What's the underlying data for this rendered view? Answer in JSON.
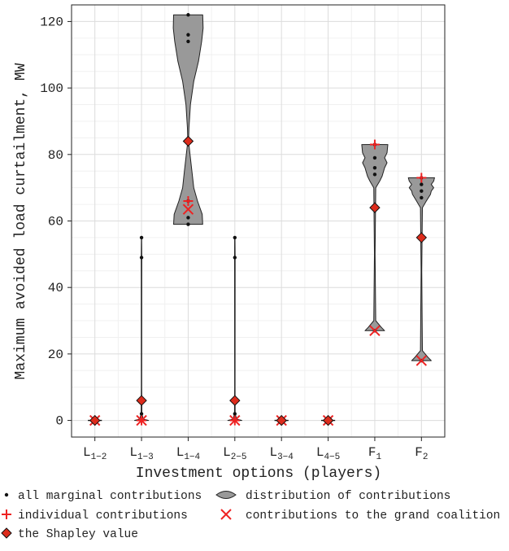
{
  "chart_data": {
    "type": "violin",
    "xlabel": "Investment options (players)",
    "ylabel": "Maximum avoided load curtailment, MW",
    "ylim": [
      -5,
      125
    ],
    "yticks": [
      0,
      20,
      40,
      60,
      80,
      100,
      120
    ],
    "grid": true,
    "categories": [
      {
        "base": "L",
        "sub": "1−2"
      },
      {
        "base": "L",
        "sub": "1−3"
      },
      {
        "base": "L",
        "sub": "1−4"
      },
      {
        "base": "L",
        "sub": "2−5"
      },
      {
        "base": "L",
        "sub": "3−4"
      },
      {
        "base": "L",
        "sub": "4−5"
      },
      {
        "base": "F",
        "sub": "1"
      },
      {
        "base": "F",
        "sub": "2"
      }
    ],
    "series": [
      {
        "name": "all marginal contributions",
        "values": [
          [
            0
          ],
          [
            0,
            2,
            49,
            55
          ],
          [
            59,
            61,
            66,
            114,
            116,
            122
          ],
          [
            0,
            2,
            49,
            55
          ],
          [
            0
          ],
          [
            0
          ],
          [
            27,
            74,
            76,
            79,
            83
          ],
          [
            18,
            67,
            69,
            71,
            73
          ]
        ]
      },
      {
        "name": "distribution of contributions",
        "violins": [
          {
            "min": 0,
            "max": 0,
            "width": 0.3,
            "profile": [
              [
                0,
                1
              ]
            ]
          },
          {
            "min": 0,
            "max": 55,
            "width": 0.3,
            "profile": [
              [
                0,
                1
              ],
              [
                0.4,
                0.25
              ],
              [
                2,
                0.05
              ],
              [
                10,
                0.03
              ],
              [
                49,
                0.04
              ],
              [
                55,
                0.02
              ]
            ]
          },
          {
            "min": 59,
            "max": 122,
            "width": 0.8,
            "profile": [
              [
                59,
                0.78
              ],
              [
                62,
                0.75
              ],
              [
                66,
                0.5
              ],
              [
                70,
                0.3
              ],
              [
                75,
                0.2
              ],
              [
                80,
                0.1
              ],
              [
                84,
                0.02
              ],
              [
                88,
                0.04
              ],
              [
                95,
                0.12
              ],
              [
                102,
                0.3
              ],
              [
                108,
                0.55
              ],
              [
                114,
                0.72
              ],
              [
                118,
                0.8
              ],
              [
                122,
                0.78
              ]
            ]
          },
          {
            "min": 0,
            "max": 55,
            "width": 0.3,
            "profile": [
              [
                0,
                1
              ],
              [
                0.4,
                0.25
              ],
              [
                2,
                0.05
              ],
              [
                10,
                0.03
              ],
              [
                49,
                0.04
              ],
              [
                55,
                0.02
              ]
            ]
          },
          {
            "min": 0,
            "max": 0,
            "width": 0.3,
            "profile": [
              [
                0,
                1
              ]
            ]
          },
          {
            "min": 0,
            "max": 0,
            "width": 0.3,
            "profile": [
              [
                0,
                1
              ]
            ]
          },
          {
            "min": 27,
            "max": 83,
            "width": 0.7,
            "profile": [
              [
                27,
                0.6
              ],
              [
                28,
                0.4
              ],
              [
                30,
                0.06
              ],
              [
                50,
                0.02
              ],
              [
                70,
                0.06
              ],
              [
                72,
                0.3
              ],
              [
                73.5,
                0.45
              ],
              [
                76,
                0.6
              ],
              [
                77.5,
                0.75
              ],
              [
                79,
                0.6
              ],
              [
                80.5,
                0.75
              ],
              [
                83,
                0.8
              ]
            ]
          },
          {
            "min": 18,
            "max": 73,
            "width": 0.7,
            "profile": [
              [
                18,
                0.6
              ],
              [
                19,
                0.4
              ],
              [
                21,
                0.06
              ],
              [
                45,
                0.02
              ],
              [
                64,
                0.06
              ],
              [
                66,
                0.3
              ],
              [
                68,
                0.55
              ],
              [
                69,
                0.6
              ],
              [
                70,
                0.75
              ],
              [
                71,
                0.6
              ],
              [
                72,
                0.75
              ],
              [
                73,
                0.8
              ]
            ]
          }
        ]
      },
      {
        "name": "individual contributions",
        "values": [
          0,
          0,
          66,
          0,
          0,
          0,
          83,
          73
        ]
      },
      {
        "name": "contributions to the grand coalition",
        "values": [
          0,
          0,
          63.5,
          0,
          0,
          0,
          27,
          18
        ]
      },
      {
        "name": "the Shapley value",
        "values": [
          0,
          6,
          84,
          6,
          0,
          0,
          64,
          55
        ]
      }
    ],
    "legend": {
      "placement": "bottom",
      "entries": [
        {
          "marker": "dot",
          "label": "all marginal contributions"
        },
        {
          "marker": "violin",
          "label": "distribution of contributions"
        },
        {
          "marker": "plus",
          "label": "individual contributions"
        },
        {
          "marker": "cross",
          "label": "contributions to the grand coalition"
        },
        {
          "marker": "diamond",
          "label": "the Shapley value"
        }
      ]
    },
    "colors": {
      "violin_fill": "#999999",
      "plus": "#ee2222",
      "cross": "#ee2222",
      "diamond_fill": "#dd2c1c",
      "dot": "#111111"
    }
  }
}
